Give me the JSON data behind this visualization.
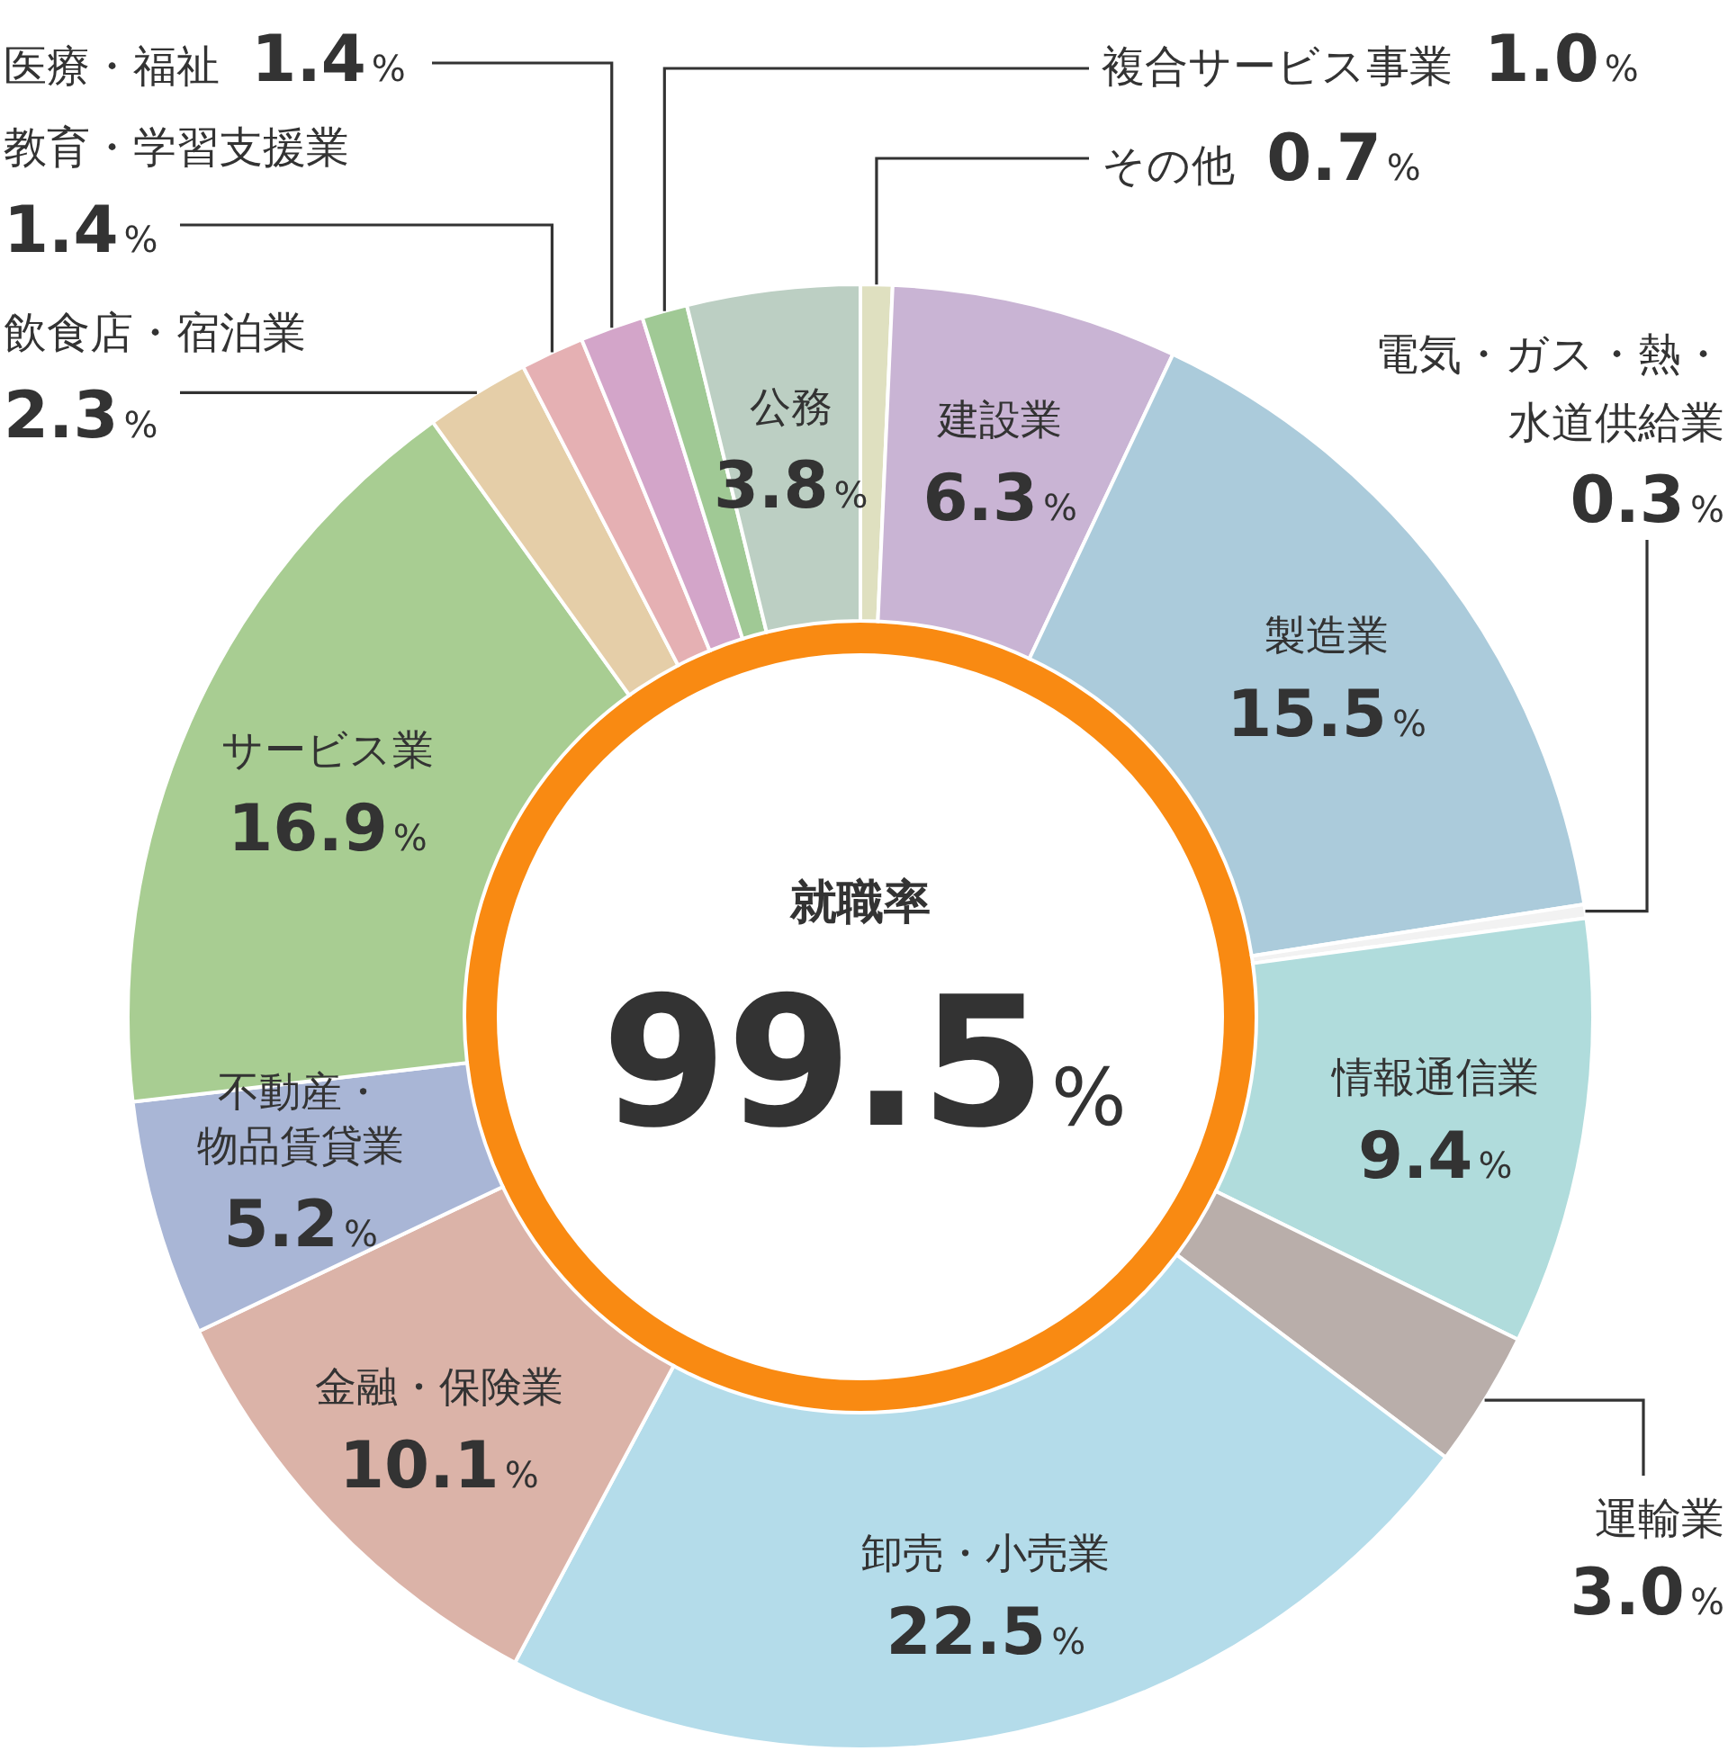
{
  "chart_data": {
    "type": "donut",
    "title": "就職率",
    "annotations": [
      "99.5%"
    ],
    "categories": [
      "その他",
      "建設業",
      "製造業",
      "電気・ガス・熱・水道供給業",
      "情報通信業",
      "運輸業",
      "卸売・小売業",
      "金融・保険業",
      "不動産・物品賃貸業",
      "サービス業",
      "飲食店・宿泊業",
      "教育・学習支援業",
      "医療・福祉",
      "複合サービス事業",
      "公務"
    ],
    "values": [
      0.7,
      6.3,
      15.5,
      0.3,
      9.4,
      3.0,
      22.5,
      10.1,
      5.2,
      16.9,
      2.3,
      1.4,
      1.4,
      1.0,
      3.8
    ],
    "value_labels": [
      "0.7%",
      "6.3%",
      "15.5%",
      "0.3%",
      "9.4%",
      "3.0%",
      "22.5%",
      "10.1%",
      "5.2%",
      "16.9%",
      "2.3%",
      "1.4%",
      "1.4%",
      "1.0%",
      "3.8%"
    ],
    "colors": [
      "#dfe0c0",
      "#c9b4d4",
      "#abcbdb",
      "#f2f2f2",
      "#b0dcdc",
      "#b9aeaa",
      "#b4dcea",
      "#dbb3a8",
      "#a9b6d6",
      "#a8cd92",
      "#e5cea8",
      "#e5b0b3",
      "#d3a5c9",
      "#a0c995",
      "#bccfc3"
    ]
  }
}
